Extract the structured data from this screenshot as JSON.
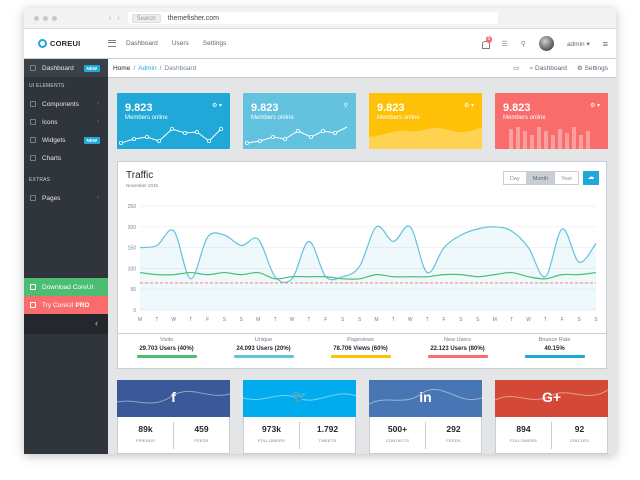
{
  "browser": {
    "url": "themefisher.com",
    "search_pill": "Search"
  },
  "header": {
    "brand": "COREUI",
    "nav": [
      "Dashboard",
      "Users",
      "Settings"
    ],
    "notification_count": "5",
    "user_label": "admin"
  },
  "sidebar": {
    "items": [
      {
        "label": "Dashboard",
        "badge": "NEW"
      },
      {
        "label": "UI ELEMENTS"
      },
      {
        "label": "Components"
      },
      {
        "label": "Icons"
      },
      {
        "label": "Widgets",
        "badge": "NEW"
      },
      {
        "label": "Charts"
      },
      {
        "label": "EXTRAS"
      },
      {
        "label": "Pages"
      }
    ],
    "download": "Download CoreUI",
    "pro_prefix": "Try CoreUI",
    "pro_bold": "PRO",
    "collapse": "‹"
  },
  "breadcrumb": {
    "home": "Home",
    "admin": "Admin",
    "current": "Dashboard",
    "right_dashboard": "Dashboard",
    "right_settings": "Settings"
  },
  "stats": [
    {
      "value": "9.823",
      "label": "Members online",
      "color": "#20a8d8"
    },
    {
      "value": "9.823",
      "label": "Members online",
      "color": "#63c2de"
    },
    {
      "value": "9.823",
      "label": "Members online",
      "color": "#ffc107"
    },
    {
      "value": "9.823",
      "label": "Members online",
      "color": "#f86c6b"
    }
  ],
  "traffic": {
    "title": "Traffic",
    "subtitle": "November 2015",
    "buttons": [
      "Day",
      "Month",
      "Year"
    ],
    "active_button": "Month",
    "yticks": [
      "250",
      "200",
      "150",
      "100",
      "50",
      "0"
    ],
    "xlabels": [
      "M",
      "T",
      "W",
      "T",
      "F",
      "S",
      "S",
      "M",
      "T",
      "W",
      "T",
      "F",
      "S",
      "S",
      "M",
      "T",
      "W",
      "T",
      "F",
      "S",
      "S",
      "M",
      "T",
      "W",
      "T",
      "F",
      "S",
      "S"
    ]
  },
  "traffic_footer": [
    {
      "name": "Visits",
      "value": "29.703 Users (40%)",
      "color": "#4dbd74"
    },
    {
      "name": "Unique",
      "value": "24.093 Users (20%)",
      "color": "#63c2de"
    },
    {
      "name": "Pageviews",
      "value": "78.706 Views (60%)",
      "color": "#ffc107"
    },
    {
      "name": "New Users",
      "value": "22.123 Users (80%)",
      "color": "#f86c6b"
    },
    {
      "name": "Bounce Rate",
      "value": "40.15%",
      "color": "#20a8d8"
    }
  ],
  "social": [
    {
      "name": "facebook",
      "icon": "f",
      "color": "#3b5998",
      "a_num": "89k",
      "a_label": "FRIENDS",
      "b_num": "459",
      "b_label": "FEEDS"
    },
    {
      "name": "twitter",
      "icon": "🐦",
      "color": "#00aced",
      "a_num": "973k",
      "a_label": "FOLLOWERS",
      "b_num": "1.792",
      "b_label": "TWEETS"
    },
    {
      "name": "linkedin",
      "icon": "in",
      "color": "#4875b4",
      "a_num": "500+",
      "a_label": "CONTACTS",
      "b_num": "292",
      "b_label": "FEEDS"
    },
    {
      "name": "google-plus",
      "icon": "G+",
      "color": "#d34836",
      "a_num": "894",
      "a_label": "FOLLOWERS",
      "b_num": "92",
      "b_label": "CIRCLES"
    }
  ],
  "chart_data": {
    "type": "line",
    "title": "Traffic",
    "subtitle": "November 2015",
    "ylim": [
      0,
      250
    ],
    "categories": [
      "M",
      "T",
      "W",
      "T",
      "F",
      "S",
      "S",
      "M",
      "T",
      "W",
      "T",
      "F",
      "S",
      "S",
      "M",
      "T",
      "W",
      "T",
      "F",
      "S",
      "S",
      "M",
      "T",
      "W",
      "T",
      "F",
      "S",
      "S"
    ],
    "series": [
      {
        "color": "#63c2de",
        "values": [
          150,
          155,
          190,
          75,
          175,
          180,
          155,
          170,
          80,
          75,
          165,
          80,
          80,
          105,
          200,
          165,
          200,
          90,
          150,
          180,
          195,
          200,
          190,
          150,
          80,
          195,
          115,
          160
        ]
      },
      {
        "color": "#4dbd74",
        "values": [
          90,
          85,
          85,
          90,
          85,
          90,
          85,
          90,
          75,
          80,
          80,
          80,
          75,
          75,
          85,
          80,
          80,
          80,
          85,
          85,
          80,
          85,
          90,
          80,
          75,
          85,
          85,
          90
        ]
      },
      {
        "color": "#f86c6b",
        "values": [
          65,
          65,
          65,
          65,
          65,
          65,
          65,
          65,
          65,
          65,
          65,
          65,
          65,
          65,
          65,
          65,
          65,
          65,
          65,
          65,
          65,
          65,
          65,
          65,
          65,
          65,
          65,
          65
        ]
      }
    ]
  }
}
